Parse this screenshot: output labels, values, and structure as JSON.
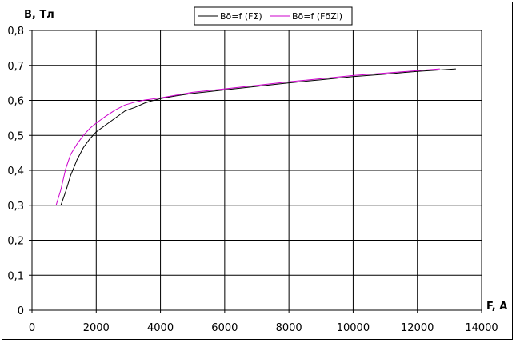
{
  "chart_data": {
    "type": "line",
    "title": "",
    "ylabel": "B, Тл",
    "xlabel": "F, A",
    "xlim": [
      0,
      14000
    ],
    "ylim": [
      0,
      0.8
    ],
    "x_ticks": [
      "0",
      "2000",
      "4000",
      "6000",
      "8000",
      "10000",
      "12000",
      "14000"
    ],
    "y_ticks": [
      "0",
      "0,1",
      "0,2",
      "0,3",
      "0,4",
      "0,5",
      "0,6",
      "0,7",
      "0,8"
    ],
    "grid": true,
    "legend_position": "top-center",
    "series": [
      {
        "name": "Bδ=f (FΣ)",
        "color": "#000000",
        "x": [
          900,
          1050,
          1200,
          1400,
          1600,
          1800,
          2000,
          2300,
          2600,
          2900,
          3200,
          3500,
          3700,
          4000,
          4500,
          5000,
          6000,
          7000,
          8000,
          9000,
          10000,
          11000,
          12000,
          13200
        ],
        "y": [
          0.3,
          0.34,
          0.385,
          0.43,
          0.465,
          0.49,
          0.51,
          0.53,
          0.55,
          0.57,
          0.58,
          0.592,
          0.598,
          0.605,
          0.613,
          0.62,
          0.63,
          0.64,
          0.65,
          0.659,
          0.668,
          0.675,
          0.683,
          0.69
        ]
      },
      {
        "name": "Bδ=f (FδZl)",
        "color": "#cc00cc",
        "x": [
          750,
          900,
          1050,
          1200,
          1400,
          1600,
          1800,
          2000,
          2300,
          2600,
          2900,
          3200,
          3500,
          4000,
          4500,
          5000,
          6000,
          7000,
          8000,
          9000,
          10000,
          11000,
          12000,
          12700
        ],
        "y": [
          0.3,
          0.345,
          0.405,
          0.445,
          0.475,
          0.5,
          0.52,
          0.535,
          0.555,
          0.573,
          0.587,
          0.595,
          0.601,
          0.607,
          0.615,
          0.623,
          0.633,
          0.643,
          0.653,
          0.662,
          0.671,
          0.678,
          0.685,
          0.69
        ]
      }
    ]
  }
}
